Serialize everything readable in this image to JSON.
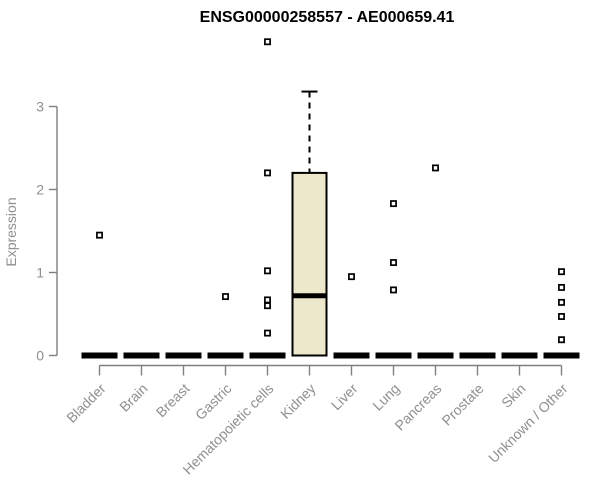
{
  "page": {
    "background": "#ffffff"
  },
  "chart_data": {
    "type": "boxplot",
    "title": "ENSG00000258557 - AE000659.41",
    "ylabel": "Expression",
    "xlabel": "",
    "ylim": [
      0,
      3
    ],
    "yticks": [
      0,
      1,
      2,
      3
    ],
    "grid": false,
    "legend": null,
    "categories": [
      "Bladder",
      "Brain",
      "Breast",
      "Gastric",
      "Hematopoietic cells",
      "Kidney",
      "Liver",
      "Lung",
      "Pancreas",
      "Prostate",
      "Skin",
      "Unknown / Other"
    ],
    "boxes": [
      {
        "category": "Bladder",
        "q1": 0,
        "median": 0,
        "q3": 0,
        "whisker_low": 0,
        "whisker_high": 0,
        "outliers": [
          1.45
        ]
      },
      {
        "category": "Brain",
        "q1": 0,
        "median": 0,
        "q3": 0,
        "whisker_low": 0,
        "whisker_high": 0,
        "outliers": []
      },
      {
        "category": "Breast",
        "q1": 0,
        "median": 0,
        "q3": 0,
        "whisker_low": 0,
        "whisker_high": 0,
        "outliers": []
      },
      {
        "category": "Gastric",
        "q1": 0,
        "median": 0,
        "q3": 0,
        "whisker_low": 0,
        "whisker_high": 0,
        "outliers": [
          0.71
        ]
      },
      {
        "category": "Hematopoietic cells",
        "q1": 0,
        "median": 0,
        "q3": 0,
        "whisker_low": 0,
        "whisker_high": 0,
        "outliers": [
          3.78,
          2.2,
          1.02,
          0.67,
          0.6,
          0.27
        ]
      },
      {
        "category": "Kidney",
        "q1": 0,
        "median": 0.72,
        "q3": 2.2,
        "whisker_low": 0,
        "whisker_high": 3.18,
        "outliers": []
      },
      {
        "category": "Liver",
        "q1": 0,
        "median": 0,
        "q3": 0,
        "whisker_low": 0,
        "whisker_high": 0,
        "outliers": [
          0.95
        ]
      },
      {
        "category": "Lung",
        "q1": 0,
        "median": 0,
        "q3": 0,
        "whisker_low": 0,
        "whisker_high": 0,
        "outliers": [
          1.83,
          1.12,
          0.79
        ]
      },
      {
        "category": "Pancreas",
        "q1": 0,
        "median": 0,
        "q3": 0,
        "whisker_low": 0,
        "whisker_high": 0,
        "outliers": [
          2.26
        ]
      },
      {
        "category": "Prostate",
        "q1": 0,
        "median": 0,
        "q3": 0,
        "whisker_low": 0,
        "whisker_high": 0,
        "outliers": []
      },
      {
        "category": "Skin",
        "q1": 0,
        "median": 0,
        "q3": 0,
        "whisker_low": 0,
        "whisker_high": 0,
        "outliers": []
      },
      {
        "category": "Unknown / Other",
        "q1": 0,
        "median": 0,
        "q3": 0,
        "whisker_low": 0,
        "whisker_high": 0,
        "outliers": [
          1.01,
          0.82,
          0.64,
          0.47,
          0.19
        ]
      }
    ],
    "colors": {
      "box_fill": "#ede7cc",
      "box_stroke": "#000000",
      "median": "#000000",
      "whisker": "#000000",
      "outlier_stroke": "#000000",
      "outlier_fill": "#ffffff",
      "axis": "#7f7f7f",
      "tick_label": "#8f8f8f",
      "axis_label": "#8f8f8f",
      "title": "#000000"
    }
  }
}
